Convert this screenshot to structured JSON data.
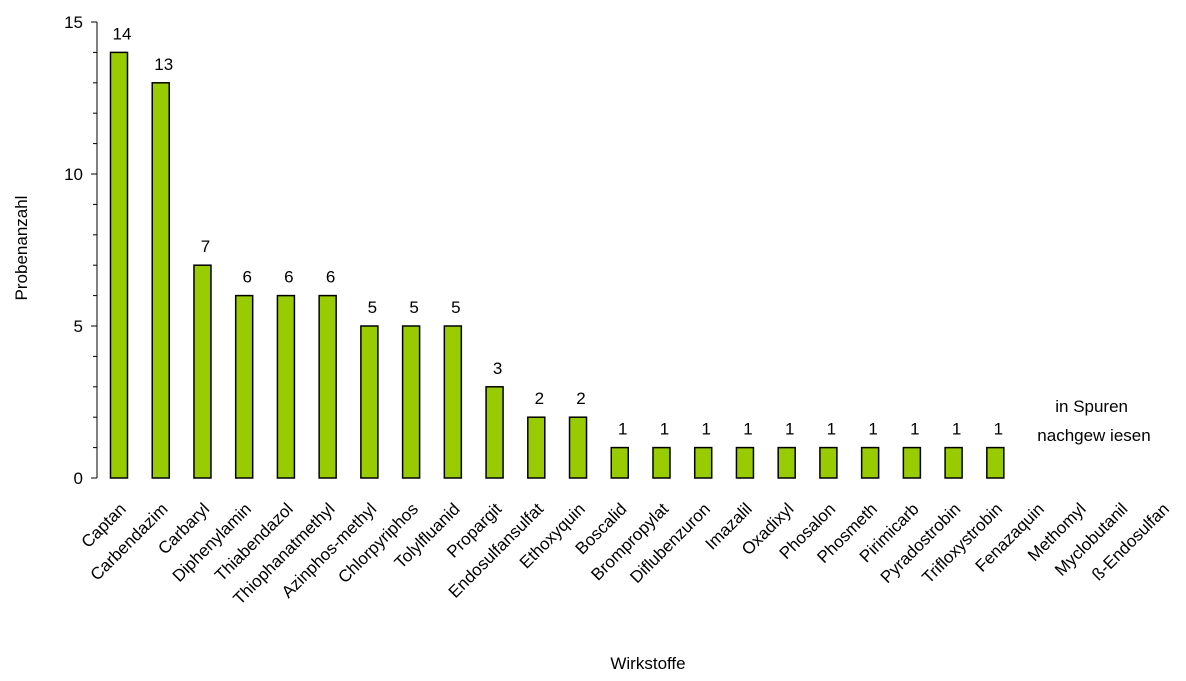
{
  "chart_data": {
    "type": "bar",
    "xlabel": "Wirkstoffe",
    "ylabel": "Probenanzahl",
    "ylim": [
      0,
      15
    ],
    "yticks": [
      0,
      5,
      10,
      15
    ],
    "grid": false,
    "legend": "none",
    "bar_color": "#99cc00",
    "categories": [
      "Captan",
      "Carbendazim",
      "Carbaryl",
      "Diphenylamin",
      "Thiabendazol",
      "Thiophanatmethyl",
      "Azinphos-methyl",
      "Chlorpyriphos",
      "Tolylfluanid",
      "Propargit",
      "Endosulfansulfat",
      "Ethoxyquin",
      "Boscalid",
      "Brompropylat",
      "Diflubenzuron",
      "Imazalil",
      "Oxadixyl",
      "Phosalon",
      "Phosmeth",
      "Pirimicarb",
      "Pyradostrobin",
      "Trifloxystrobin",
      "Fenazaquin",
      "Methomyl",
      "Myclobutanil",
      "ß-Endosulfan"
    ],
    "values": [
      14,
      13,
      7,
      6,
      6,
      6,
      5,
      5,
      5,
      3,
      2,
      2,
      1,
      1,
      1,
      1,
      1,
      1,
      1,
      1,
      1,
      1,
      null,
      null,
      null,
      null
    ],
    "annotation": [
      "in Spuren",
      "nachgew iesen"
    ]
  }
}
